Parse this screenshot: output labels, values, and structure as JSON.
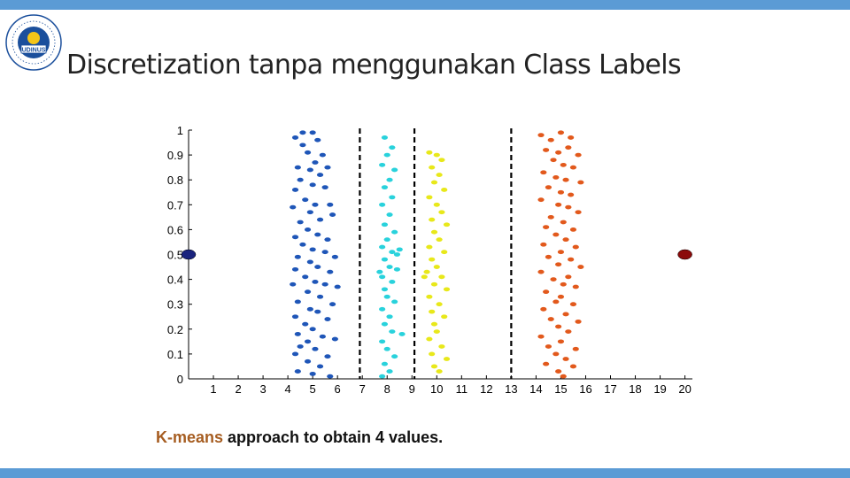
{
  "slide": {
    "title": "Discretization tanpa menggunakan Class Labels",
    "caption_highlight": "K-means",
    "caption_rest": " approach to obtain 4 values."
  },
  "logo": {
    "icon": "udinus-seal-icon",
    "center_text": "UDINUS"
  },
  "colors": {
    "accent_bar": "#5b9bd5",
    "series_blue": "#1f56b8",
    "series_cyan": "#29d2dc",
    "series_yellow": "#e8e81a",
    "series_orange": "#e2591c",
    "outlier_left": "#1a237e",
    "outlier_right": "#8b0a0a",
    "caption_accent": "#a65d21"
  },
  "chart_data": {
    "type": "scatter",
    "xlim": [
      0,
      20.3
    ],
    "ylim": [
      0,
      1
    ],
    "x_ticks": [
      1,
      2,
      3,
      4,
      5,
      6,
      7,
      8,
      9,
      10,
      11,
      12,
      13,
      14,
      15,
      16,
      17,
      18,
      19,
      20
    ],
    "x_tick_labels": [
      "1",
      "2",
      "3",
      "4",
      "5",
      "6",
      "7",
      "8",
      "9",
      "10",
      "11",
      "12",
      "13",
      "14",
      "15",
      "16",
      "17",
      "18",
      "19",
      "20"
    ],
    "y_ticks": [
      0,
      0.1,
      0.2,
      0.3,
      0.4,
      0.5,
      0.6,
      0.7,
      0.8,
      0.9,
      1
    ],
    "y_tick_labels": [
      "0",
      "0.1",
      "0.2",
      "0.3",
      "0.4",
      "0.5",
      "0.6",
      "0.7",
      "0.8",
      "0.9",
      "1"
    ],
    "grid": false,
    "legend": "none",
    "cut_points": [
      6.9,
      9.1,
      13.0
    ],
    "series": [
      {
        "color_key": "series_blue",
        "points": [
          [
            4.3,
            0.97
          ],
          [
            4.6,
            0.94
          ],
          [
            5.0,
            0.99
          ],
          [
            5.2,
            0.96
          ],
          [
            4.8,
            0.91
          ],
          [
            5.4,
            0.9
          ],
          [
            5.1,
            0.87
          ],
          [
            4.4,
            0.85
          ],
          [
            4.9,
            0.84
          ],
          [
            5.6,
            0.85
          ],
          [
            5.3,
            0.82
          ],
          [
            4.5,
            0.8
          ],
          [
            5.0,
            0.78
          ],
          [
            4.3,
            0.76
          ],
          [
            5.5,
            0.77
          ],
          [
            4.7,
            0.72
          ],
          [
            5.1,
            0.7
          ],
          [
            4.2,
            0.69
          ],
          [
            5.7,
            0.7
          ],
          [
            4.9,
            0.67
          ],
          [
            5.3,
            0.64
          ],
          [
            4.5,
            0.63
          ],
          [
            5.8,
            0.66
          ],
          [
            4.8,
            0.6
          ],
          [
            5.2,
            0.58
          ],
          [
            4.3,
            0.57
          ],
          [
            5.6,
            0.56
          ],
          [
            4.6,
            0.54
          ],
          [
            5.0,
            0.52
          ],
          [
            5.5,
            0.51
          ],
          [
            4.4,
            0.49
          ],
          [
            5.9,
            0.49
          ],
          [
            4.9,
            0.47
          ],
          [
            5.2,
            0.45
          ],
          [
            4.3,
            0.44
          ],
          [
            5.7,
            0.43
          ],
          [
            4.7,
            0.41
          ],
          [
            5.1,
            0.39
          ],
          [
            4.2,
            0.38
          ],
          [
            5.5,
            0.38
          ],
          [
            6.0,
            0.37
          ],
          [
            4.8,
            0.35
          ],
          [
            5.3,
            0.33
          ],
          [
            4.4,
            0.31
          ],
          [
            5.8,
            0.3
          ],
          [
            4.9,
            0.28
          ],
          [
            5.2,
            0.27
          ],
          [
            4.3,
            0.25
          ],
          [
            5.6,
            0.24
          ],
          [
            4.7,
            0.22
          ],
          [
            5.0,
            0.2
          ],
          [
            4.4,
            0.18
          ],
          [
            5.4,
            0.17
          ],
          [
            4.8,
            0.15
          ],
          [
            5.9,
            0.16
          ],
          [
            4.5,
            0.13
          ],
          [
            5.1,
            0.12
          ],
          [
            4.3,
            0.1
          ],
          [
            5.6,
            0.09
          ],
          [
            4.8,
            0.07
          ],
          [
            5.3,
            0.05
          ],
          [
            4.4,
            0.03
          ],
          [
            5.0,
            0.02
          ],
          [
            5.7,
            0.01
          ],
          [
            4.6,
            0.99
          ]
        ]
      },
      {
        "color_key": "series_cyan",
        "points": [
          [
            7.9,
            0.97
          ],
          [
            8.2,
            0.93
          ],
          [
            8.0,
            0.9
          ],
          [
            7.8,
            0.86
          ],
          [
            8.3,
            0.84
          ],
          [
            8.1,
            0.8
          ],
          [
            7.9,
            0.77
          ],
          [
            8.2,
            0.73
          ],
          [
            7.8,
            0.7
          ],
          [
            8.1,
            0.66
          ],
          [
            7.9,
            0.62
          ],
          [
            8.3,
            0.59
          ],
          [
            8.0,
            0.56
          ],
          [
            7.8,
            0.53
          ],
          [
            8.2,
            0.51
          ],
          [
            8.5,
            0.52
          ],
          [
            7.9,
            0.48
          ],
          [
            8.1,
            0.45
          ],
          [
            8.4,
            0.44
          ],
          [
            7.8,
            0.41
          ],
          [
            8.2,
            0.39
          ],
          [
            7.9,
            0.36
          ],
          [
            8.0,
            0.33
          ],
          [
            8.3,
            0.31
          ],
          [
            7.8,
            0.28
          ],
          [
            8.1,
            0.25
          ],
          [
            7.9,
            0.22
          ],
          [
            8.2,
            0.19
          ],
          [
            8.6,
            0.18
          ],
          [
            7.8,
            0.15
          ],
          [
            8.0,
            0.12
          ],
          [
            8.3,
            0.09
          ],
          [
            7.9,
            0.06
          ],
          [
            8.1,
            0.03
          ],
          [
            7.8,
            0.01
          ],
          [
            8.4,
            0.5
          ],
          [
            7.7,
            0.43
          ]
        ]
      },
      {
        "color_key": "series_yellow",
        "points": [
          [
            9.7,
            0.91
          ],
          [
            10.0,
            0.9
          ],
          [
            10.2,
            0.88
          ],
          [
            9.8,
            0.85
          ],
          [
            10.1,
            0.82
          ],
          [
            9.9,
            0.79
          ],
          [
            10.3,
            0.76
          ],
          [
            9.7,
            0.73
          ],
          [
            10.0,
            0.7
          ],
          [
            10.2,
            0.67
          ],
          [
            9.8,
            0.64
          ],
          [
            10.4,
            0.62
          ],
          [
            9.9,
            0.59
          ],
          [
            10.1,
            0.56
          ],
          [
            9.7,
            0.53
          ],
          [
            10.3,
            0.51
          ],
          [
            9.8,
            0.48
          ],
          [
            10.0,
            0.45
          ],
          [
            9.6,
            0.43
          ],
          [
            10.2,
            0.41
          ],
          [
            9.9,
            0.38
          ],
          [
            10.4,
            0.36
          ],
          [
            9.7,
            0.33
          ],
          [
            10.1,
            0.3
          ],
          [
            9.8,
            0.27
          ],
          [
            10.3,
            0.25
          ],
          [
            9.9,
            0.22
          ],
          [
            10.0,
            0.19
          ],
          [
            9.7,
            0.16
          ],
          [
            10.2,
            0.13
          ],
          [
            9.8,
            0.1
          ],
          [
            10.4,
            0.08
          ],
          [
            9.9,
            0.05
          ],
          [
            10.1,
            0.03
          ],
          [
            9.5,
            0.41
          ]
        ]
      },
      {
        "color_key": "series_orange",
        "points": [
          [
            14.2,
            0.98
          ],
          [
            14.6,
            0.96
          ],
          [
            15.0,
            0.99
          ],
          [
            15.4,
            0.97
          ],
          [
            14.4,
            0.92
          ],
          [
            14.9,
            0.91
          ],
          [
            15.3,
            0.93
          ],
          [
            15.7,
            0.9
          ],
          [
            14.7,
            0.88
          ],
          [
            15.1,
            0.86
          ],
          [
            15.5,
            0.85
          ],
          [
            14.3,
            0.83
          ],
          [
            14.8,
            0.81
          ],
          [
            15.2,
            0.8
          ],
          [
            15.8,
            0.79
          ],
          [
            14.5,
            0.77
          ],
          [
            15.0,
            0.75
          ],
          [
            15.4,
            0.74
          ],
          [
            14.2,
            0.72
          ],
          [
            14.9,
            0.7
          ],
          [
            15.3,
            0.69
          ],
          [
            15.7,
            0.67
          ],
          [
            14.6,
            0.65
          ],
          [
            15.1,
            0.63
          ],
          [
            14.4,
            0.61
          ],
          [
            15.5,
            0.6
          ],
          [
            14.8,
            0.58
          ],
          [
            15.2,
            0.56
          ],
          [
            14.3,
            0.54
          ],
          [
            15.6,
            0.53
          ],
          [
            15.0,
            0.51
          ],
          [
            14.5,
            0.49
          ],
          [
            15.4,
            0.48
          ],
          [
            14.9,
            0.46
          ],
          [
            15.8,
            0.45
          ],
          [
            14.2,
            0.43
          ],
          [
            15.3,
            0.41
          ],
          [
            14.7,
            0.4
          ],
          [
            15.1,
            0.38
          ],
          [
            15.6,
            0.37
          ],
          [
            14.4,
            0.35
          ],
          [
            15.0,
            0.33
          ],
          [
            14.8,
            0.31
          ],
          [
            15.5,
            0.3
          ],
          [
            14.3,
            0.28
          ],
          [
            15.2,
            0.26
          ],
          [
            14.6,
            0.24
          ],
          [
            15.7,
            0.23
          ],
          [
            14.9,
            0.21
          ],
          [
            15.3,
            0.19
          ],
          [
            14.2,
            0.17
          ],
          [
            15.0,
            0.15
          ],
          [
            14.5,
            0.13
          ],
          [
            15.6,
            0.12
          ],
          [
            14.8,
            0.1
          ],
          [
            15.2,
            0.08
          ],
          [
            14.4,
            0.06
          ],
          [
            15.5,
            0.05
          ],
          [
            14.9,
            0.03
          ],
          [
            15.1,
            0.01
          ]
        ]
      },
      {
        "color_key": "outlier_left",
        "points": [
          [
            0,
            0.5
          ]
        ]
      },
      {
        "color_key": "outlier_right",
        "points": [
          [
            20,
            0.5
          ]
        ]
      }
    ]
  }
}
